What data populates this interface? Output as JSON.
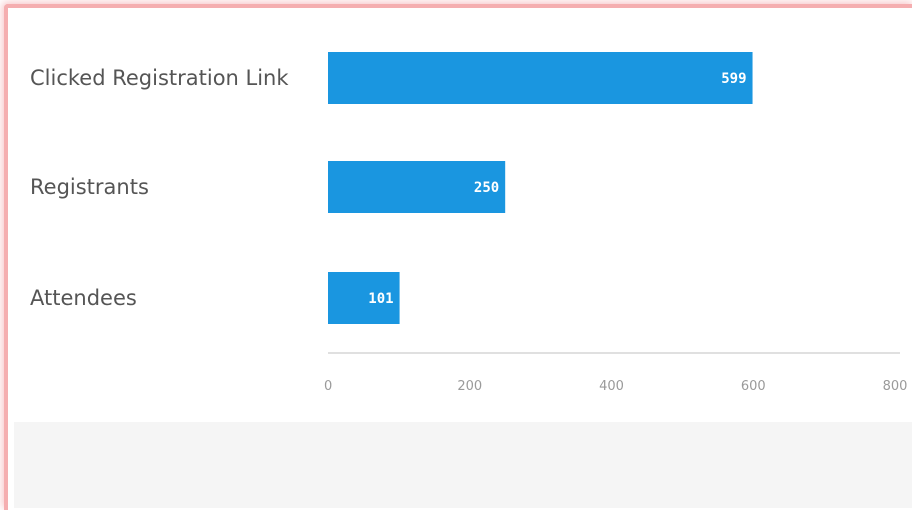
{
  "chart_data": {
    "type": "bar",
    "orientation": "horizontal",
    "categories": [
      "Clicked Registration Link",
      "Registrants",
      "Attendees"
    ],
    "values": [
      599,
      250,
      101
    ],
    "data_labels": [
      "599",
      "250",
      "101"
    ],
    "xlim": [
      0,
      800
    ],
    "x_ticks": [
      0,
      200,
      400,
      600,
      800
    ],
    "tick_labels": [
      "0",
      "200",
      "400",
      "600",
      "800"
    ],
    "bar_color": "#1a96e0",
    "grid": false,
    "legend": "none"
  }
}
